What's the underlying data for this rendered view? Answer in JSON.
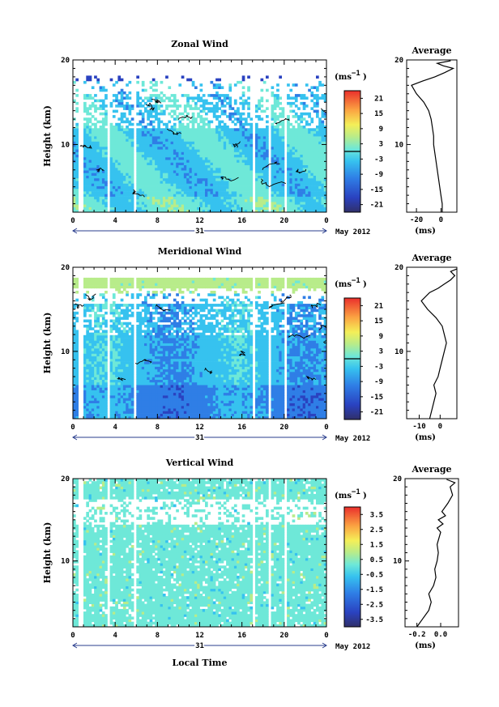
{
  "figure": {
    "x_axis_title": "Local Time",
    "date_label": "May 2012",
    "day_label": "31",
    "height_label": "Height (km)",
    "unit_label": "(ms",
    "unit_exp": "−1"
  },
  "chart_data": [
    {
      "type": "heatmap",
      "title": "Zonal Wind",
      "ylabel": "Height (km)",
      "xlabel": "",
      "x_ticks": [
        "0",
        "4",
        "8",
        "12",
        "16",
        "20",
        "0"
      ],
      "x_range": [
        0,
        24
      ],
      "y_ticks": [
        "20",
        "10"
      ],
      "y_range": [
        2,
        20
      ],
      "colorbar_ticks": [
        "21",
        "15",
        "9",
        "3",
        "-3",
        "-9",
        "-15",
        "-21"
      ],
      "colorbar_range": [
        -24,
        24
      ],
      "colorbar_unit": "(ms−1)",
      "contour_at": 0
    },
    {
      "type": "line",
      "title": "Average",
      "xlabel": "(ms−1)",
      "x_ticks": [
        "-20",
        "0"
      ],
      "x_range": [
        -28,
        13
      ],
      "y_ticks": [
        "20",
        "10"
      ],
      "y_range": [
        2,
        20
      ],
      "series": [
        {
          "points": [
            [
              1,
              2
            ],
            [
              1,
              3
            ],
            [
              0,
              4
            ],
            [
              -1,
              5
            ],
            [
              -2,
              6
            ],
            [
              -3,
              7
            ],
            [
              -4,
              8
            ],
            [
              -5,
              9
            ],
            [
              -6,
              10
            ],
            [
              -6,
              11
            ],
            [
              -7,
              12
            ],
            [
              -8,
              13
            ],
            [
              -10,
              14
            ],
            [
              -14,
              15
            ],
            [
              -20,
              16
            ],
            [
              -24,
              17
            ],
            [
              -15,
              17.5
            ],
            [
              -5,
              18
            ],
            [
              3,
              18.5
            ],
            [
              10,
              19
            ],
            [
              2,
              19.3
            ],
            [
              -3,
              19.6
            ],
            [
              8,
              19.9
            ]
          ]
        }
      ]
    },
    {
      "type": "heatmap",
      "title": "Meridional Wind",
      "ylabel": "Height (km)",
      "xlabel": "",
      "x_ticks": [
        "0",
        "4",
        "8",
        "12",
        "16",
        "20",
        "0"
      ],
      "x_range": [
        0,
        24
      ],
      "y_ticks": [
        "20",
        "10"
      ],
      "y_range": [
        2,
        20
      ],
      "colorbar_ticks": [
        "21",
        "15",
        "9",
        "3",
        "-3",
        "-9",
        "-15",
        "-21"
      ],
      "colorbar_range": [
        -24,
        24
      ],
      "colorbar_unit": "(ms−1)",
      "contour_at": 0
    },
    {
      "type": "line",
      "title": "Average",
      "xlabel": "(ms−1)",
      "x_ticks": [
        "-10",
        "0"
      ],
      "x_range": [
        -16,
        8
      ],
      "y_ticks": [
        "20",
        "10"
      ],
      "y_range": [
        2,
        20
      ],
      "series": [
        {
          "points": [
            [
              -5,
              2
            ],
            [
              -4,
              3
            ],
            [
              -3,
              4
            ],
            [
              -2,
              5
            ],
            [
              -3,
              6
            ],
            [
              -1,
              7
            ],
            [
              0,
              8
            ],
            [
              1,
              9
            ],
            [
              2,
              10
            ],
            [
              3,
              11
            ],
            [
              2,
              12
            ],
            [
              1,
              13
            ],
            [
              -2,
              14
            ],
            [
              -6,
              15
            ],
            [
              -9,
              16
            ],
            [
              -5,
              17
            ],
            [
              -1,
              17.5
            ],
            [
              2,
              18
            ],
            [
              5,
              18.5
            ],
            [
              7,
              19
            ],
            [
              5,
              19.5
            ],
            [
              8,
              19.8
            ]
          ]
        }
      ]
    },
    {
      "type": "heatmap",
      "title": "Vertical Wind",
      "ylabel": "Height (km)",
      "xlabel": "Local Time",
      "x_ticks": [
        "0",
        "4",
        "8",
        "12",
        "16",
        "20",
        "0"
      ],
      "x_range": [
        0,
        24
      ],
      "y_ticks": [
        "20",
        "10"
      ],
      "y_range": [
        2,
        20
      ],
      "colorbar_ticks": [
        "3.5",
        "2.5",
        "1.5",
        "0.5",
        "-0.5",
        "-1.5",
        "-2.5",
        "-3.5"
      ],
      "colorbar_range": [
        -4,
        4
      ],
      "colorbar_unit": "(ms−1)"
    },
    {
      "type": "line",
      "title": "Average",
      "xlabel": "(ms−1)",
      "x_ticks": [
        "-0.2",
        "0.0"
      ],
      "x_range": [
        -0.3,
        0.15
      ],
      "y_ticks": [
        "20",
        "10"
      ],
      "y_range": [
        2,
        20
      ],
      "series": [
        {
          "points": [
            [
              -0.2,
              2
            ],
            [
              -0.15,
              3
            ],
            [
              -0.1,
              4
            ],
            [
              -0.08,
              5
            ],
            [
              -0.1,
              6
            ],
            [
              -0.06,
              7
            ],
            [
              -0.04,
              8
            ],
            [
              -0.05,
              9
            ],
            [
              -0.03,
              10
            ],
            [
              -0.02,
              11
            ],
            [
              -0.03,
              12
            ],
            [
              -0.01,
              13
            ],
            [
              0,
              13.5
            ],
            [
              -0.03,
              14
            ],
            [
              0.02,
              14.5
            ],
            [
              -0.02,
              15
            ],
            [
              0.04,
              15.5
            ],
            [
              0.01,
              16
            ],
            [
              0.06,
              17
            ],
            [
              0.1,
              18
            ],
            [
              0.08,
              19
            ],
            [
              0.12,
              19.5
            ],
            [
              0.05,
              19.9
            ]
          ]
        }
      ]
    }
  ]
}
